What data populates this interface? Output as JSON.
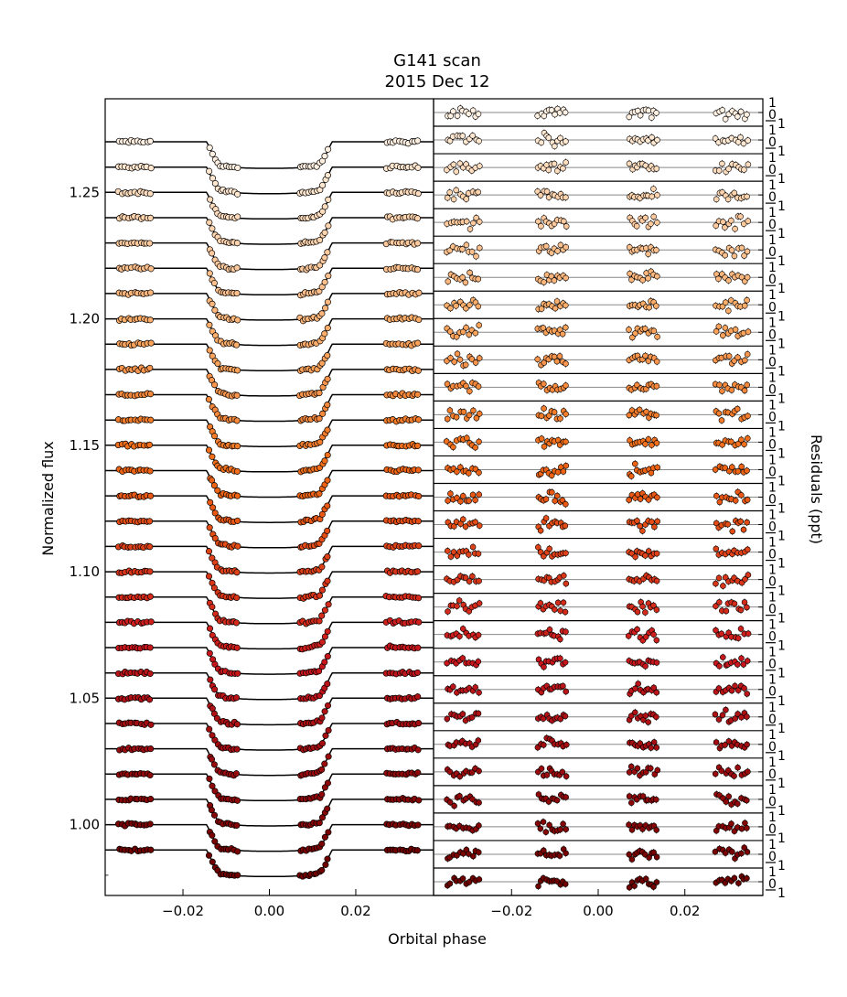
{
  "figure": {
    "title_line1": "G141 scan",
    "title_line2": "2015 Dec 12"
  },
  "chart_data": [
    {
      "type": "line",
      "panel": "light curves",
      "xlabel": "Orbital phase",
      "ylabel": "Normalized flux",
      "xlim": [
        -0.038,
        0.038
      ],
      "ylim": [
        0.972,
        1.287
      ],
      "xticks": [
        -0.02,
        0.0,
        0.02
      ],
      "xtick_labels": [
        "−0.02",
        "0.00",
        "0.02"
      ],
      "yticks": [
        1.0,
        1.05,
        1.1,
        1.15,
        1.2,
        1.25
      ],
      "ytick_labels": [
        "1.00",
        "1.05",
        "1.10",
        "1.15",
        "1.20",
        "1.25"
      ],
      "n_channels": 29,
      "baseline_step": 0.01,
      "bottom_baseline": 0.99,
      "transit_depth": 0.0105,
      "contact_phase_outer": 0.0145,
      "contact_phase_inner": 0.0115,
      "data_phase_windows": [
        [
          -0.035,
          -0.027
        ],
        [
          -0.014,
          -0.007
        ],
        [
          0.007,
          0.014
        ],
        [
          0.027,
          0.035
        ]
      ],
      "grid": false,
      "colormap": "light peach (top) to dark red (bottom)"
    },
    {
      "type": "scatter",
      "panel": "residuals",
      "xlabel": "Orbital phase",
      "ylabel": "Residuals (ppt)",
      "xlim": [
        -0.038,
        0.038
      ],
      "xticks": [
        -0.02,
        0.0,
        0.02
      ],
      "xtick_labels": [
        "−0.02",
        "0.00",
        "0.02"
      ],
      "n_channels": 29,
      "resid_ytick_labels": [
        "1",
        "0",
        "1"
      ],
      "grid": false
    }
  ]
}
